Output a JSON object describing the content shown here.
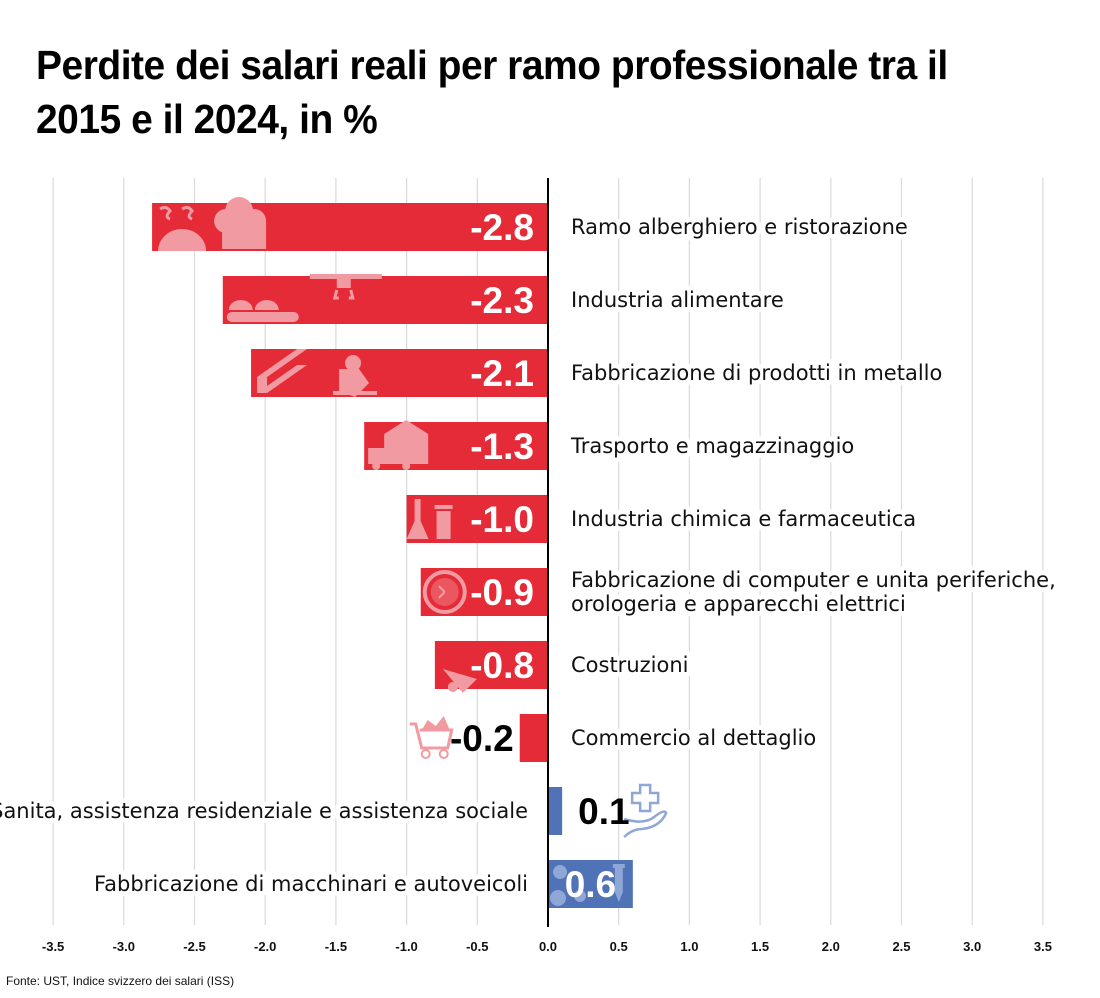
{
  "title": "Perdite dei salari reali per ramo professionale tra il 2015 e il 2024, in %",
  "source": "Fonte: UST, Indice svizzero dei salari (ISS)",
  "colors": {
    "negative": "#e42b37",
    "positive": "#5072b6",
    "icon_negative": "#f29aa1",
    "icon_positive": "#8fa7d6",
    "grid": "#d9d9d9",
    "axis": "#000000"
  },
  "chart_data": {
    "type": "bar",
    "orientation": "horizontal",
    "title": "Perdite dei salari reali per ramo professionale tra il 2015 e il 2024, in %",
    "xlabel": "",
    "ylabel": "",
    "xlim": [
      -3.5,
      3.5
    ],
    "grid": true,
    "x_ticks": [
      -3.5,
      -3.0,
      -2.5,
      -2.0,
      -1.5,
      -1.0,
      -0.5,
      0.0,
      0.5,
      1.0,
      1.5,
      2.0,
      2.5,
      3.0,
      3.5
    ],
    "x_tick_labels": [
      "-3.5",
      "-3.0",
      "-2.5",
      "-2.0",
      "-1.5",
      "-1.0",
      "-0.5",
      "0.0",
      "0.5",
      "1.0",
      "1.5",
      "2.0",
      "2.5",
      "3.0",
      "3.5"
    ],
    "categories": [
      "Ramo alberghiero e ristorazione",
      "Industria alimentare",
      "Fabbricazione di prodotti in metallo",
      "Trasporto e magazzinaggio",
      "Industria chimica e farmaceutica",
      "Fabbricazione di computer e unita periferiche, orologeria e apparecchi elettrici",
      "Costruzioni",
      "Commercio al dettaglio",
      "Sanita, assistenza residenziale e assistenza sociale",
      "Fabbricazione di macchinari e autoveicoli"
    ],
    "category_lines": [
      [
        "Ramo alberghiero e ristorazione"
      ],
      [
        "Industria alimentare"
      ],
      [
        "Fabbricazione di prodotti in metallo"
      ],
      [
        "Trasporto e magazzinaggio"
      ],
      [
        "Industria chimica e farmaceutica"
      ],
      [
        "Fabbricazione di computer e unita periferiche,",
        "orologeria e apparecchi elettrici"
      ],
      [
        "Costruzioni"
      ],
      [
        "Commercio al dettaglio"
      ],
      [
        "Sanita, assistenza residenziale e assistenza sociale"
      ],
      [
        "Fabbricazione di macchinari e autoveicoli"
      ]
    ],
    "values": [
      -2.8,
      -2.3,
      -2.1,
      -1.3,
      -1.0,
      -0.9,
      -0.8,
      -0.2,
      0.1,
      0.6
    ],
    "value_labels": [
      "-2.8",
      "-2.3",
      "-2.1",
      "-1.3",
      "-1.0",
      "-0.9",
      "-0.8",
      "-0.2",
      "0.1",
      "0.6"
    ],
    "icons": [
      "cloche-and-chef-hat-icon",
      "conveyor-belt-robot-arm-icon",
      "steel-beam-robot-arm-icon",
      "truck-warehouse-icon",
      "flask-pill-bottle-icon",
      "stopwatch-icon",
      "wheelbarrow-icon",
      "shopping-cart-icon",
      "hand-medical-cross-icon",
      "gears-screw-icon"
    ]
  }
}
